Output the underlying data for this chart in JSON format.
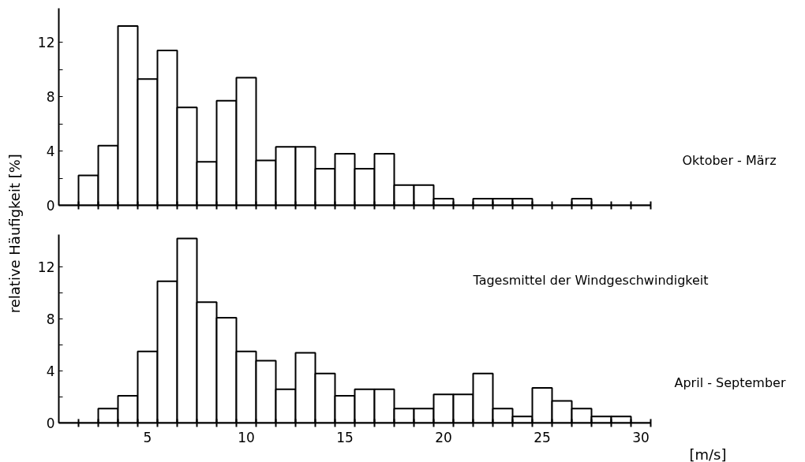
{
  "chart_data": [
    {
      "type": "histogram",
      "ylabel": "relative  Häufigkeit  [%]",
      "bins": [
        0.5,
        1.5,
        2.5,
        3.5,
        4.5,
        5.5,
        6.5,
        7.5,
        8.5,
        9.5,
        10.5,
        11.5,
        12.5,
        13.5,
        14.5,
        15.5,
        16.5,
        17.5,
        18.5,
        19.5,
        20.5,
        21.5,
        22.5,
        23.5,
        24.5,
        25.5,
        26.5,
        27.5,
        28.5,
        29.5,
        30.5
      ],
      "values": [
        0,
        2.2,
        4.4,
        13.2,
        9.3,
        11.4,
        7.2,
        3.2,
        7.7,
        9.4,
        3.3,
        4.3,
        4.3,
        2.7,
        3.8,
        2.7,
        3.8,
        1.5,
        1.5,
        0.5,
        0,
        0.5,
        0.5,
        0.5,
        0,
        0,
        0.5,
        0,
        0,
        0
      ],
      "color": "#ffffff",
      "xlim": [
        0.5,
        30.5
      ],
      "xticks": [
        {
          "value": 1.5,
          "label": null
        },
        {
          "value": 2.5,
          "label": null
        },
        {
          "value": 3.5,
          "label": null
        },
        {
          "value": 4.5,
          "label": null
        },
        {
          "value": 5.5,
          "label": null
        },
        {
          "value": 6.5,
          "label": null
        },
        {
          "value": 7.5,
          "label": null
        },
        {
          "value": 8.5,
          "label": null
        },
        {
          "value": 9.5,
          "label": null
        },
        {
          "value": 10.5,
          "label": null
        },
        {
          "value": 11.5,
          "label": null
        },
        {
          "value": 12.5,
          "label": null
        },
        {
          "value": 13.5,
          "label": null
        },
        {
          "value": 14.5,
          "label": null
        },
        {
          "value": 15.5,
          "label": null
        },
        {
          "value": 16.5,
          "label": null
        },
        {
          "value": 17.5,
          "label": null
        },
        {
          "value": 18.5,
          "label": null
        },
        {
          "value": 19.5,
          "label": null
        },
        {
          "value": 20.5,
          "label": null
        },
        {
          "value": 21.5,
          "label": null
        },
        {
          "value": 22.5,
          "label": null
        },
        {
          "value": 23.5,
          "label": null
        },
        {
          "value": 24.5,
          "label": null
        },
        {
          "value": 25.5,
          "label": null
        },
        {
          "value": 26.5,
          "label": null
        },
        {
          "value": 27.5,
          "label": null
        },
        {
          "value": 28.5,
          "label": null
        },
        {
          "value": 29.5,
          "label": null
        },
        {
          "value": 30.5,
          "label": null
        }
      ],
      "ylim": [
        0,
        14.5
      ],
      "yticks": [
        0,
        {
          "value": 2,
          "label": null
        },
        4,
        {
          "value": 6,
          "label": null
        },
        8,
        {
          "value": 10,
          "label": null
        },
        12
      ],
      "tick_labels": "y",
      "grid": false,
      "annotations": [
        "Oktober - März"
      ]
    },
    {
      "type": "histogram",
      "xlabel": "[m/s]",
      "bins": [
        0.5,
        1.5,
        2.5,
        3.5,
        4.5,
        5.5,
        6.5,
        7.5,
        8.5,
        9.5,
        10.5,
        11.5,
        12.5,
        13.5,
        14.5,
        15.5,
        16.5,
        17.5,
        18.5,
        19.5,
        20.5,
        21.5,
        22.5,
        23.5,
        24.5,
        25.5,
        26.5,
        27.5,
        28.5,
        29.5,
        30.5
      ],
      "values": [
        0,
        0,
        1.1,
        2.1,
        5.5,
        10.9,
        14.2,
        9.3,
        8.1,
        5.5,
        4.8,
        2.6,
        5.4,
        3.8,
        2.1,
        2.6,
        2.6,
        1.1,
        1.1,
        2.2,
        2.2,
        3.8,
        1.1,
        0.5,
        2.7,
        1.7,
        1.1,
        0.5,
        0.5,
        0
      ],
      "color": "#ffffff",
      "xlim": [
        0.5,
        30.5
      ],
      "xticks": [
        {
          "value": 1.5,
          "label": null
        },
        {
          "value": 2.5,
          "label": null
        },
        {
          "value": 3.5,
          "label": null
        },
        {
          "value": 4.5,
          "label": null
        },
        5,
        {
          "value": 5.5,
          "label": null
        },
        {
          "value": 6.5,
          "label": null
        },
        {
          "value": 7.5,
          "label": null
        },
        {
          "value": 8.5,
          "label": null
        },
        {
          "value": 9.5,
          "label": null
        },
        10,
        {
          "value": 10.5,
          "label": null
        },
        {
          "value": 11.5,
          "label": null
        },
        {
          "value": 12.5,
          "label": null
        },
        {
          "value": 13.5,
          "label": null
        },
        {
          "value": 14.5,
          "label": null
        },
        15,
        {
          "value": 15.5,
          "label": null
        },
        {
          "value": 16.5,
          "label": null
        },
        {
          "value": 17.5,
          "label": null
        },
        {
          "value": 18.5,
          "label": null
        },
        {
          "value": 19.5,
          "label": null
        },
        20,
        {
          "value": 20.5,
          "label": null
        },
        {
          "value": 21.5,
          "label": null
        },
        {
          "value": 22.5,
          "label": null
        },
        {
          "value": 23.5,
          "label": null
        },
        {
          "value": 24.5,
          "label": null
        },
        25,
        {
          "value": 25.5,
          "label": null
        },
        {
          "value": 26.5,
          "label": null
        },
        {
          "value": 27.5,
          "label": null
        },
        {
          "value": 28.5,
          "label": null
        },
        {
          "value": 29.5,
          "label": null
        },
        30,
        {
          "value": 30.5,
          "label": null
        }
      ],
      "ylim": [
        0,
        14.5
      ],
      "yticks": [
        0,
        {
          "value": 2,
          "label": null
        },
        4,
        {
          "value": 6,
          "label": null
        },
        8,
        {
          "value": 10,
          "label": null
        },
        12
      ],
      "grid": false,
      "annotations": [
        "Tagesmittel der Windgeschwindigkeit",
        "April - September"
      ]
    }
  ]
}
